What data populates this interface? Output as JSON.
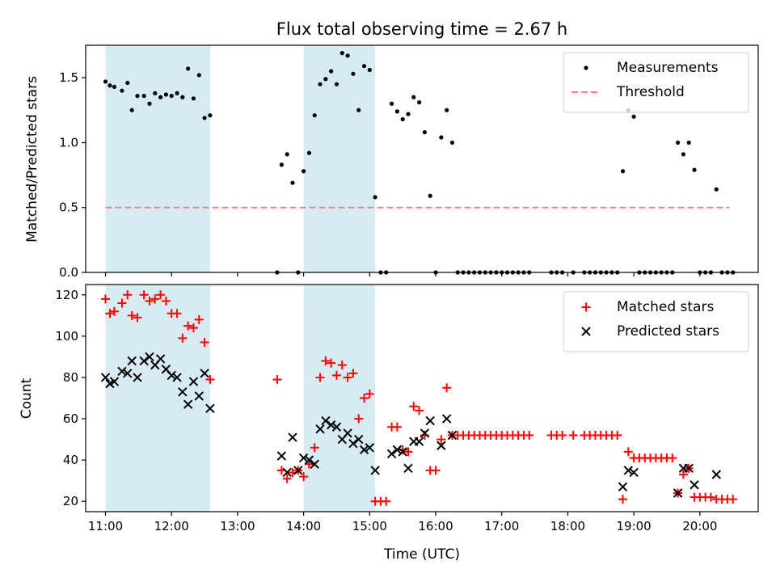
{
  "title": "Flux total observing time = 2.67 h",
  "colors": {
    "shade": "#add8e6",
    "measurement": "#000000",
    "threshold": "#ff7f7f",
    "matched": "#ff0000",
    "predicted": "#000000"
  },
  "chart_data": [
    {
      "type": "scatter",
      "ylabel": "Matched/Predicted stars",
      "xlabel": "",
      "xlim": [
        "10:42",
        "20:53"
      ],
      "ylim": [
        0,
        1.75
      ],
      "yticks": [
        "0.0",
        "0.5",
        "1.0",
        "1.5"
      ],
      "legend": {
        "position": "top-right",
        "entries": [
          "Measurements",
          "Threshold"
        ]
      },
      "shaded_intervals": [
        [
          "11:00",
          "12:35"
        ],
        [
          "14:00",
          "15:05"
        ]
      ],
      "threshold": {
        "value": 0.5,
        "from": "11:00",
        "to": "20:27"
      },
      "series": [
        {
          "name": "Measurements",
          "points": [
            [
              "11:00",
              1.47
            ],
            [
              "11:04",
              1.44
            ],
            [
              "11:08",
              1.43
            ],
            [
              "11:15",
              1.4
            ],
            [
              "11:20",
              1.46
            ],
            [
              "11:24",
              1.25
            ],
            [
              "11:29",
              1.36
            ],
            [
              "11:35",
              1.36
            ],
            [
              "11:40",
              1.3
            ],
            [
              "11:45",
              1.38
            ],
            [
              "11:50",
              1.35
            ],
            [
              "11:55",
              1.37
            ],
            [
              "12:00",
              1.36
            ],
            [
              "12:05",
              1.38
            ],
            [
              "12:10",
              1.35
            ],
            [
              "12:15",
              1.57
            ],
            [
              "12:20",
              1.34
            ],
            [
              "12:25",
              1.52
            ],
            [
              "12:30",
              1.19
            ],
            [
              "12:35",
              1.21
            ],
            [
              "13:36",
              0.0
            ],
            [
              "13:40",
              0.83
            ],
            [
              "13:45",
              0.91
            ],
            [
              "13:50",
              0.69
            ],
            [
              "13:55",
              0.0
            ],
            [
              "14:00",
              0.78
            ],
            [
              "14:05",
              0.92
            ],
            [
              "14:10",
              1.21
            ],
            [
              "14:15",
              1.45
            ],
            [
              "14:20",
              1.49
            ],
            [
              "14:25",
              1.55
            ],
            [
              "14:30",
              1.45
            ],
            [
              "14:35",
              1.69
            ],
            [
              "14:40",
              1.67
            ],
            [
              "14:45",
              1.53
            ],
            [
              "14:50",
              1.25
            ],
            [
              "14:55",
              1.59
            ],
            [
              "15:00",
              1.56
            ],
            [
              "15:05",
              0.58
            ],
            [
              "15:10",
              0.0
            ],
            [
              "15:15",
              0.0
            ],
            [
              "15:20",
              1.3
            ],
            [
              "15:25",
              1.24
            ],
            [
              "15:30",
              1.18
            ],
            [
              "15:35",
              1.22
            ],
            [
              "15:40",
              1.35
            ],
            [
              "15:45",
              1.31
            ],
            [
              "15:50",
              1.08
            ],
            [
              "15:55",
              0.59
            ],
            [
              "16:00",
              0.0
            ],
            [
              "16:05",
              1.04
            ],
            [
              "16:10",
              1.25
            ],
            [
              "16:15",
              1.0
            ],
            [
              "16:20",
              0.0
            ],
            [
              "16:25",
              0.0
            ],
            [
              "16:30",
              0.0
            ],
            [
              "16:35",
              0.0
            ],
            [
              "16:40",
              0.0
            ],
            [
              "16:45",
              0.0
            ],
            [
              "16:50",
              0.0
            ],
            [
              "16:55",
              0.0
            ],
            [
              "17:00",
              0.0
            ],
            [
              "17:05",
              0.0
            ],
            [
              "17:10",
              0.0
            ],
            [
              "17:15",
              0.0
            ],
            [
              "17:20",
              0.0
            ],
            [
              "17:25",
              0.0
            ],
            [
              "17:45",
              0.0
            ],
            [
              "17:50",
              0.0
            ],
            [
              "17:55",
              0.0
            ],
            [
              "18:05",
              0.0
            ],
            [
              "18:15",
              0.0
            ],
            [
              "18:20",
              0.0
            ],
            [
              "18:25",
              0.0
            ],
            [
              "18:30",
              0.0
            ],
            [
              "18:35",
              0.0
            ],
            [
              "18:40",
              0.0
            ],
            [
              "18:45",
              0.0
            ],
            [
              "18:50",
              0.78
            ],
            [
              "18:55",
              1.25
            ],
            [
              "19:00",
              1.2
            ],
            [
              "19:05",
              0.0
            ],
            [
              "19:10",
              0.0
            ],
            [
              "19:15",
              0.0
            ],
            [
              "19:20",
              0.0
            ],
            [
              "19:25",
              0.0
            ],
            [
              "19:30",
              0.0
            ],
            [
              "19:35",
              0.0
            ],
            [
              "19:40",
              1.0
            ],
            [
              "19:45",
              0.91
            ],
            [
              "19:50",
              1.0
            ],
            [
              "19:55",
              0.79
            ],
            [
              "20:00",
              0.0
            ],
            [
              "20:05",
              0.0
            ],
            [
              "20:10",
              0.0
            ],
            [
              "20:15",
              0.64
            ],
            [
              "20:20",
              0.0
            ],
            [
              "20:25",
              0.0
            ],
            [
              "20:30",
              0.0
            ]
          ]
        }
      ]
    },
    {
      "type": "scatter",
      "ylabel": "Count",
      "xlabel": "Time (UTC)",
      "xlim": [
        "10:42",
        "20:53"
      ],
      "ylim": [
        15,
        125
      ],
      "yticks": [
        "20",
        "40",
        "60",
        "80",
        "100",
        "120"
      ],
      "xticks": [
        "11:00",
        "12:00",
        "13:00",
        "14:00",
        "15:00",
        "16:00",
        "17:00",
        "18:00",
        "19:00",
        "20:00"
      ],
      "legend": {
        "position": "top-right",
        "entries": [
          "Matched stars",
          "Predicted stars"
        ]
      },
      "shaded_intervals": [
        [
          "11:00",
          "12:35"
        ],
        [
          "14:00",
          "15:05"
        ]
      ],
      "series": [
        {
          "name": "Matched stars",
          "marker": "plus",
          "points": [
            [
              "11:00",
              118
            ],
            [
              "11:04",
              111
            ],
            [
              "11:08",
              112
            ],
            [
              "11:15",
              116
            ],
            [
              "11:20",
              120
            ],
            [
              "11:24",
              110
            ],
            [
              "11:29",
              109
            ],
            [
              "11:35",
              120
            ],
            [
              "11:40",
              117
            ],
            [
              "11:45",
              118
            ],
            [
              "11:50",
              120
            ],
            [
              "11:55",
              117
            ],
            [
              "12:00",
              111
            ],
            [
              "12:05",
              111
            ],
            [
              "12:10",
              99
            ],
            [
              "12:15",
              105
            ],
            [
              "12:20",
              104
            ],
            [
              "12:25",
              108
            ],
            [
              "12:30",
              97
            ],
            [
              "12:35",
              79
            ],
            [
              "13:36",
              79
            ],
            [
              "13:40",
              35
            ],
            [
              "13:45",
              31
            ],
            [
              "13:50",
              34
            ],
            [
              "13:55",
              35
            ],
            [
              "14:00",
              32
            ],
            [
              "14:05",
              38
            ],
            [
              "14:10",
              46
            ],
            [
              "14:15",
              80
            ],
            [
              "14:20",
              88
            ],
            [
              "14:25",
              87
            ],
            [
              "14:30",
              81
            ],
            [
              "14:35",
              86
            ],
            [
              "14:40",
              80
            ],
            [
              "14:45",
              82
            ],
            [
              "14:50",
              60
            ],
            [
              "14:55",
              70
            ],
            [
              "15:00",
              72
            ],
            [
              "15:05",
              20
            ],
            [
              "15:10",
              20
            ],
            [
              "15:15",
              20
            ],
            [
              "15:20",
              56
            ],
            [
              "15:25",
              56
            ],
            [
              "15:30",
              45
            ],
            [
              "15:35",
              44
            ],
            [
              "15:40",
              66
            ],
            [
              "15:45",
              64
            ],
            [
              "15:50",
              52
            ],
            [
              "15:55",
              35
            ],
            [
              "16:00",
              35
            ],
            [
              "16:05",
              50
            ],
            [
              "16:10",
              75
            ],
            [
              "16:15",
              52
            ],
            [
              "16:20",
              52
            ],
            [
              "16:25",
              52
            ],
            [
              "16:30",
              52
            ],
            [
              "16:35",
              52
            ],
            [
              "16:40",
              52
            ],
            [
              "16:45",
              52
            ],
            [
              "16:50",
              52
            ],
            [
              "16:55",
              52
            ],
            [
              "17:00",
              52
            ],
            [
              "17:05",
              52
            ],
            [
              "17:10",
              52
            ],
            [
              "17:15",
              52
            ],
            [
              "17:20",
              52
            ],
            [
              "17:25",
              52
            ],
            [
              "17:45",
              52
            ],
            [
              "17:50",
              52
            ],
            [
              "17:55",
              52
            ],
            [
              "18:05",
              52
            ],
            [
              "18:15",
              52
            ],
            [
              "18:20",
              52
            ],
            [
              "18:25",
              52
            ],
            [
              "18:30",
              52
            ],
            [
              "18:35",
              52
            ],
            [
              "18:40",
              52
            ],
            [
              "18:45",
              52
            ],
            [
              "18:50",
              21
            ],
            [
              "18:55",
              44
            ],
            [
              "19:00",
              41
            ],
            [
              "19:05",
              41
            ],
            [
              "19:10",
              41
            ],
            [
              "19:15",
              41
            ],
            [
              "19:20",
              41
            ],
            [
              "19:25",
              41
            ],
            [
              "19:30",
              41
            ],
            [
              "19:35",
              41
            ],
            [
              "19:40",
              24
            ],
            [
              "19:45",
              33
            ],
            [
              "19:50",
              36
            ],
            [
              "19:55",
              22
            ],
            [
              "20:00",
              22
            ],
            [
              "20:05",
              22
            ],
            [
              "20:10",
              22
            ],
            [
              "20:15",
              21
            ],
            [
              "20:20",
              21
            ],
            [
              "20:25",
              21
            ],
            [
              "20:30",
              21
            ]
          ]
        },
        {
          "name": "Predicted stars",
          "marker": "x",
          "points": [
            [
              "11:00",
              80
            ],
            [
              "11:04",
              77
            ],
            [
              "11:08",
              78
            ],
            [
              "11:15",
              83
            ],
            [
              "11:20",
              82
            ],
            [
              "11:24",
              88
            ],
            [
              "11:29",
              80
            ],
            [
              "11:35",
              88
            ],
            [
              "11:40",
              90
            ],
            [
              "11:45",
              86
            ],
            [
              "11:50",
              89
            ],
            [
              "11:55",
              84
            ],
            [
              "12:00",
              81
            ],
            [
              "12:05",
              80
            ],
            [
              "12:10",
              73
            ],
            [
              "12:15",
              67
            ],
            [
              "12:20",
              78
            ],
            [
              "12:25",
              71
            ],
            [
              "12:30",
              82
            ],
            [
              "12:35",
              65
            ],
            [
              "13:40",
              42
            ],
            [
              "13:45",
              34
            ],
            [
              "13:50",
              51
            ],
            [
              "13:55",
              35
            ],
            [
              "14:00",
              41
            ],
            [
              "14:05",
              40
            ],
            [
              "14:10",
              38
            ],
            [
              "14:15",
              55
            ],
            [
              "14:20",
              59
            ],
            [
              "14:25",
              57
            ],
            [
              "14:30",
              56
            ],
            [
              "14:35",
              50
            ],
            [
              "14:40",
              53
            ],
            [
              "14:45",
              48
            ],
            [
              "14:50",
              50
            ],
            [
              "14:55",
              45
            ],
            [
              "15:00",
              46
            ],
            [
              "15:05",
              35
            ],
            [
              "15:20",
              43
            ],
            [
              "15:25",
              45
            ],
            [
              "15:30",
              44
            ],
            [
              "15:35",
              36
            ],
            [
              "15:40",
              49
            ],
            [
              "15:45",
              49
            ],
            [
              "15:50",
              53
            ],
            [
              "15:55",
              59
            ],
            [
              "16:05",
              47
            ],
            [
              "16:10",
              60
            ],
            [
              "16:15",
              52
            ],
            [
              "18:50",
              27
            ],
            [
              "18:55",
              35
            ],
            [
              "19:00",
              34
            ],
            [
              "19:40",
              24
            ],
            [
              "19:45",
              36
            ],
            [
              "19:50",
              36
            ],
            [
              "19:55",
              28
            ],
            [
              "20:15",
              33
            ]
          ]
        }
      ]
    }
  ]
}
